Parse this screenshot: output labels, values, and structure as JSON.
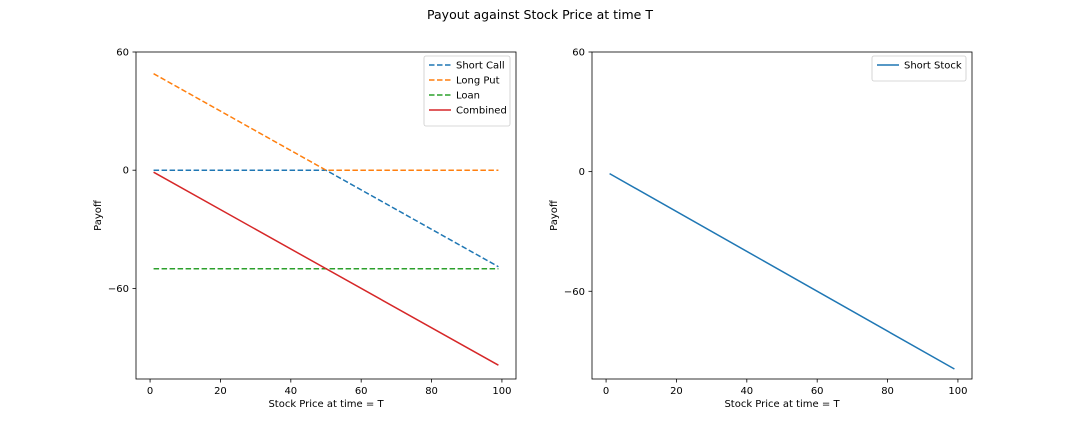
{
  "figure": {
    "title": "Payout against Stock Price at time T"
  },
  "chart_data": [
    {
      "type": "line",
      "title": "",
      "xlabel": "Stock Price at time = T",
      "ylabel": "Payoff",
      "xlim": [
        -4,
        104
      ],
      "ylim": [
        -106,
        60
      ],
      "xticks": [
        0,
        20,
        40,
        60,
        80,
        100
      ],
      "yticks": [
        60,
        0,
        -60
      ],
      "grid": false,
      "legend": "top-right",
      "series": [
        {
          "name": "Short Call",
          "color": "#1f77b4",
          "dash": "dashed",
          "x": [
            1,
            50,
            99
          ],
          "y": [
            0,
            0,
            -49
          ]
        },
        {
          "name": "Long Put",
          "color": "#ff7f0e",
          "dash": "dashed",
          "x": [
            1,
            50,
            99
          ],
          "y": [
            49,
            0,
            0
          ]
        },
        {
          "name": "Loan",
          "color": "#2ca02c",
          "dash": "dashed",
          "x": [
            1,
            99
          ],
          "y": [
            -50,
            -50
          ]
        },
        {
          "name": "Combined",
          "color": "#d62728",
          "dash": "solid",
          "x": [
            1,
            99
          ],
          "y": [
            -1,
            -99
          ]
        }
      ]
    },
    {
      "type": "line",
      "title": "",
      "xlabel": "Stock Price at time = T",
      "ylabel": "Payoff",
      "xlim": [
        -4,
        104
      ],
      "ylim": [
        -104,
        60
      ],
      "xticks": [
        0,
        20,
        40,
        60,
        80,
        100
      ],
      "yticks": [
        60,
        0,
        -60
      ],
      "grid": false,
      "legend": "top-right",
      "series": [
        {
          "name": "Short Stock",
          "color": "#1f77b4",
          "dash": "solid",
          "x": [
            1,
            99
          ],
          "y": [
            -1,
            -99
          ]
        }
      ]
    }
  ]
}
